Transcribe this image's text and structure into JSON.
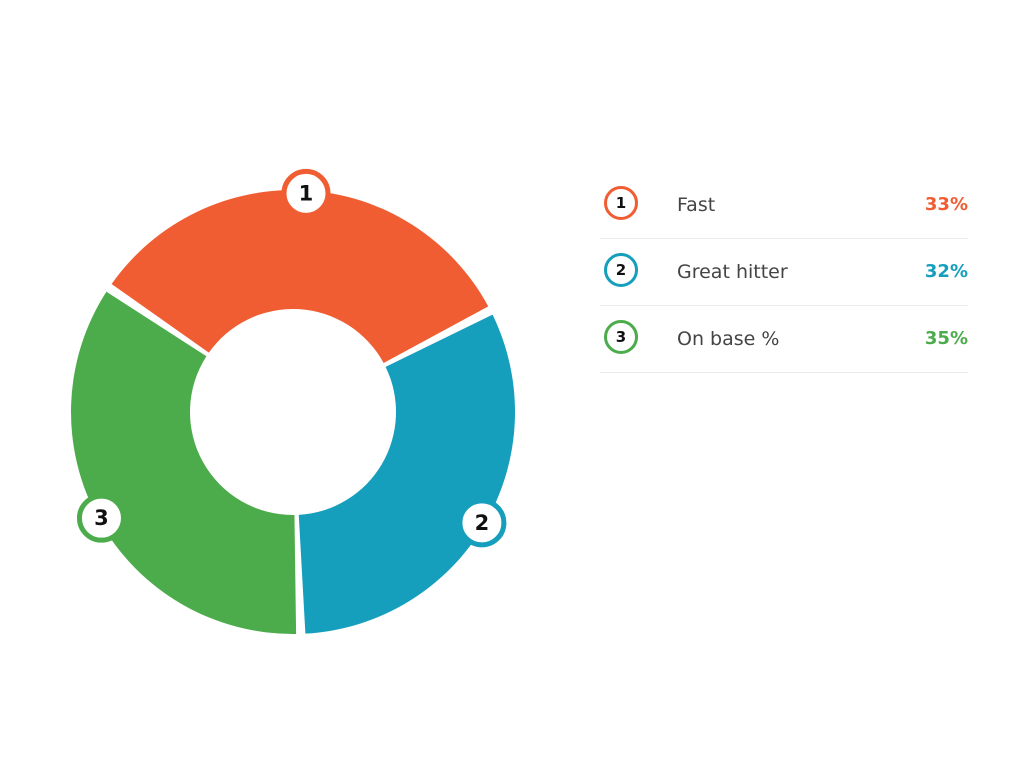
{
  "chart_data": {
    "type": "pie",
    "variant": "donut",
    "title": "",
    "categories": [
      "Fast",
      "Great hitter",
      "On base %"
    ],
    "values": [
      33,
      32,
      35
    ],
    "unit": "%",
    "markers": [
      "1",
      "2",
      "3"
    ],
    "colors": [
      "#F05D32",
      "#159FBD",
      "#4CAC4B"
    ],
    "value_labels": [
      "33%",
      "32%",
      "35%"
    ],
    "legend_position": "right"
  },
  "legend": {
    "items": [
      {
        "marker": "1",
        "label": "Fast",
        "value": "33%",
        "color": "#F05D32"
      },
      {
        "marker": "2",
        "label": "Great hitter",
        "value": "32%",
        "color": "#159FBD"
      },
      {
        "marker": "3",
        "label": "On base %",
        "value": "35%",
        "color": "#4CAC4B"
      }
    ]
  }
}
